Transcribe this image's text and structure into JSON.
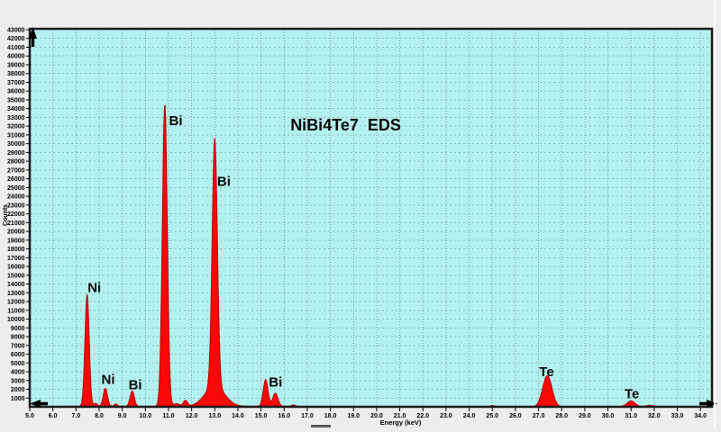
{
  "window": {
    "background_color": "#ededed"
  },
  "chart": {
    "title": "NiBi4Te7  EDS",
    "xlabel": "Energy (keV)",
    "ylabel": "Counts"
  },
  "chart_data": {
    "type": "area",
    "description": "EDS X-ray spectrum, counts vs energy, red filled peaks on cyan background",
    "x_range": [
      5.0,
      34.5
    ],
    "y_range": [
      0,
      43100
    ],
    "grid": true,
    "x_ticks": [
      "5.0",
      "6.0",
      "7.0",
      "8.0",
      "9.0",
      "10.0",
      "11.0",
      "12.0",
      "13.0",
      "14.0",
      "15.0",
      "16.0",
      "17.0",
      "18.0",
      "19.0",
      "20.0",
      "21.0",
      "22.0",
      "23.0",
      "24.0",
      "25.0",
      "26.0",
      "27.0",
      "28.0",
      "29.0",
      "30.0",
      "31.0",
      "32.0",
      "33.0",
      "34.0"
    ],
    "y_ticks": [
      "1000",
      "2000",
      "3000",
      "4000",
      "5000",
      "6000",
      "7000",
      "8000",
      "9000",
      "10000",
      "11000",
      "12000",
      "13000",
      "14000",
      "15000",
      "16000",
      "17000",
      "18000",
      "19000",
      "20000",
      "21000",
      "22000",
      "23000",
      "24000",
      "25000",
      "26000",
      "27000",
      "28000",
      "29000",
      "30000",
      "31000",
      "32000",
      "33000",
      "34000",
      "35000",
      "36000",
      "37000",
      "38000",
      "39000",
      "40000",
      "41000",
      "42000",
      "43000"
    ],
    "peaks": [
      {
        "element": "Ni",
        "line": "Ka",
        "center_kev": 7.48,
        "height_counts": 12800,
        "sigma_kev": 0.09
      },
      {
        "element": "Ni",
        "line": "Ka-shoulder",
        "center_kev": 7.85,
        "height_counts": 350,
        "sigma_kev": 0.07
      },
      {
        "element": "Ni",
        "line": "Kb",
        "center_kev": 8.27,
        "height_counts": 2050,
        "sigma_kev": 0.09
      },
      {
        "element": "",
        "line": "minor",
        "center_kev": 8.72,
        "height_counts": 260,
        "sigma_kev": 0.07
      },
      {
        "element": "Bi",
        "line": "Ll",
        "center_kev": 9.43,
        "height_counts": 1750,
        "sigma_kev": 0.09
      },
      {
        "element": "Bi",
        "line": "La",
        "center_kev": 10.84,
        "height_counts": 34500,
        "sigma_kev": 0.105
      },
      {
        "element": "",
        "line": "minor",
        "center_kev": 11.35,
        "height_counts": 300,
        "sigma_kev": 0.12
      },
      {
        "element": "Bi",
        "line": "Lb2",
        "center_kev": 11.73,
        "height_counts": 650,
        "sigma_kev": 0.09
      },
      {
        "element": "Bi",
        "line": "Lb",
        "center_kev": 13.0,
        "height_counts": 28300,
        "sigma_kev": 0.11
      },
      {
        "element": "Bi",
        "line": "Lb-broad-base",
        "center_kev": 13.0,
        "height_counts": 2300,
        "sigma_kev": 0.42
      },
      {
        "element": "Bi",
        "line": "Lg1",
        "center_kev": 15.2,
        "height_counts": 3050,
        "sigma_kev": 0.1
      },
      {
        "element": "Bi",
        "line": "Lg3",
        "center_kev": 15.62,
        "height_counts": 1500,
        "sigma_kev": 0.11
      },
      {
        "element": "",
        "line": "trace",
        "center_kev": 16.4,
        "height_counts": 150,
        "sigma_kev": 0.08
      },
      {
        "element": "",
        "line": "trace",
        "center_kev": 25.0,
        "height_counts": 150,
        "sigma_kev": 0.12
      },
      {
        "element": "Te",
        "line": "Ka",
        "center_kev": 27.38,
        "height_counts": 3550,
        "sigma_kev": 0.2
      },
      {
        "element": "Te",
        "line": "Kb",
        "center_kev": 31.0,
        "height_counts": 620,
        "sigma_kev": 0.17
      },
      {
        "element": "",
        "line": "trace",
        "center_kev": 31.8,
        "height_counts": 130,
        "sigma_kev": 0.15
      }
    ],
    "baseline_segments": [
      {
        "from_kev": 6.5,
        "to_kev": 16.7,
        "level_counts": 60
      },
      {
        "from_kev": 30.4,
        "to_kev": 32.3,
        "level_counts": 40
      }
    ],
    "labels": [
      {
        "text": "Ni",
        "x_kev": 7.5,
        "y_counts": 13100
      },
      {
        "text": "Ni",
        "x_kev": 8.1,
        "y_counts": 2620
      },
      {
        "text": "Bi",
        "x_kev": 9.27,
        "y_counts": 2000
      },
      {
        "text": "Bi",
        "x_kev": 11.02,
        "y_counts": 32100
      },
      {
        "text": "Bi",
        "x_kev": 13.1,
        "y_counts": 25200
      },
      {
        "text": "Bi",
        "x_kev": 15.34,
        "y_counts": 2300
      },
      {
        "text": "Te",
        "x_kev": 27.03,
        "y_counts": 3500
      },
      {
        "text": "Te",
        "x_kev": 30.72,
        "y_counts": 950
      }
    ],
    "title_pos": {
      "x_kev": 16.27,
      "y_counts": 31500
    },
    "legend_position": "none",
    "colors": {
      "plot_background": "#b3f1ee",
      "trace_fill": "#f90808",
      "trace_stroke": "#b80000",
      "grid_vertical": "#7fa0a0",
      "grid_horizontal": "#96b8b6",
      "axis": "#1c1c1c",
      "text": "#000000"
    }
  }
}
